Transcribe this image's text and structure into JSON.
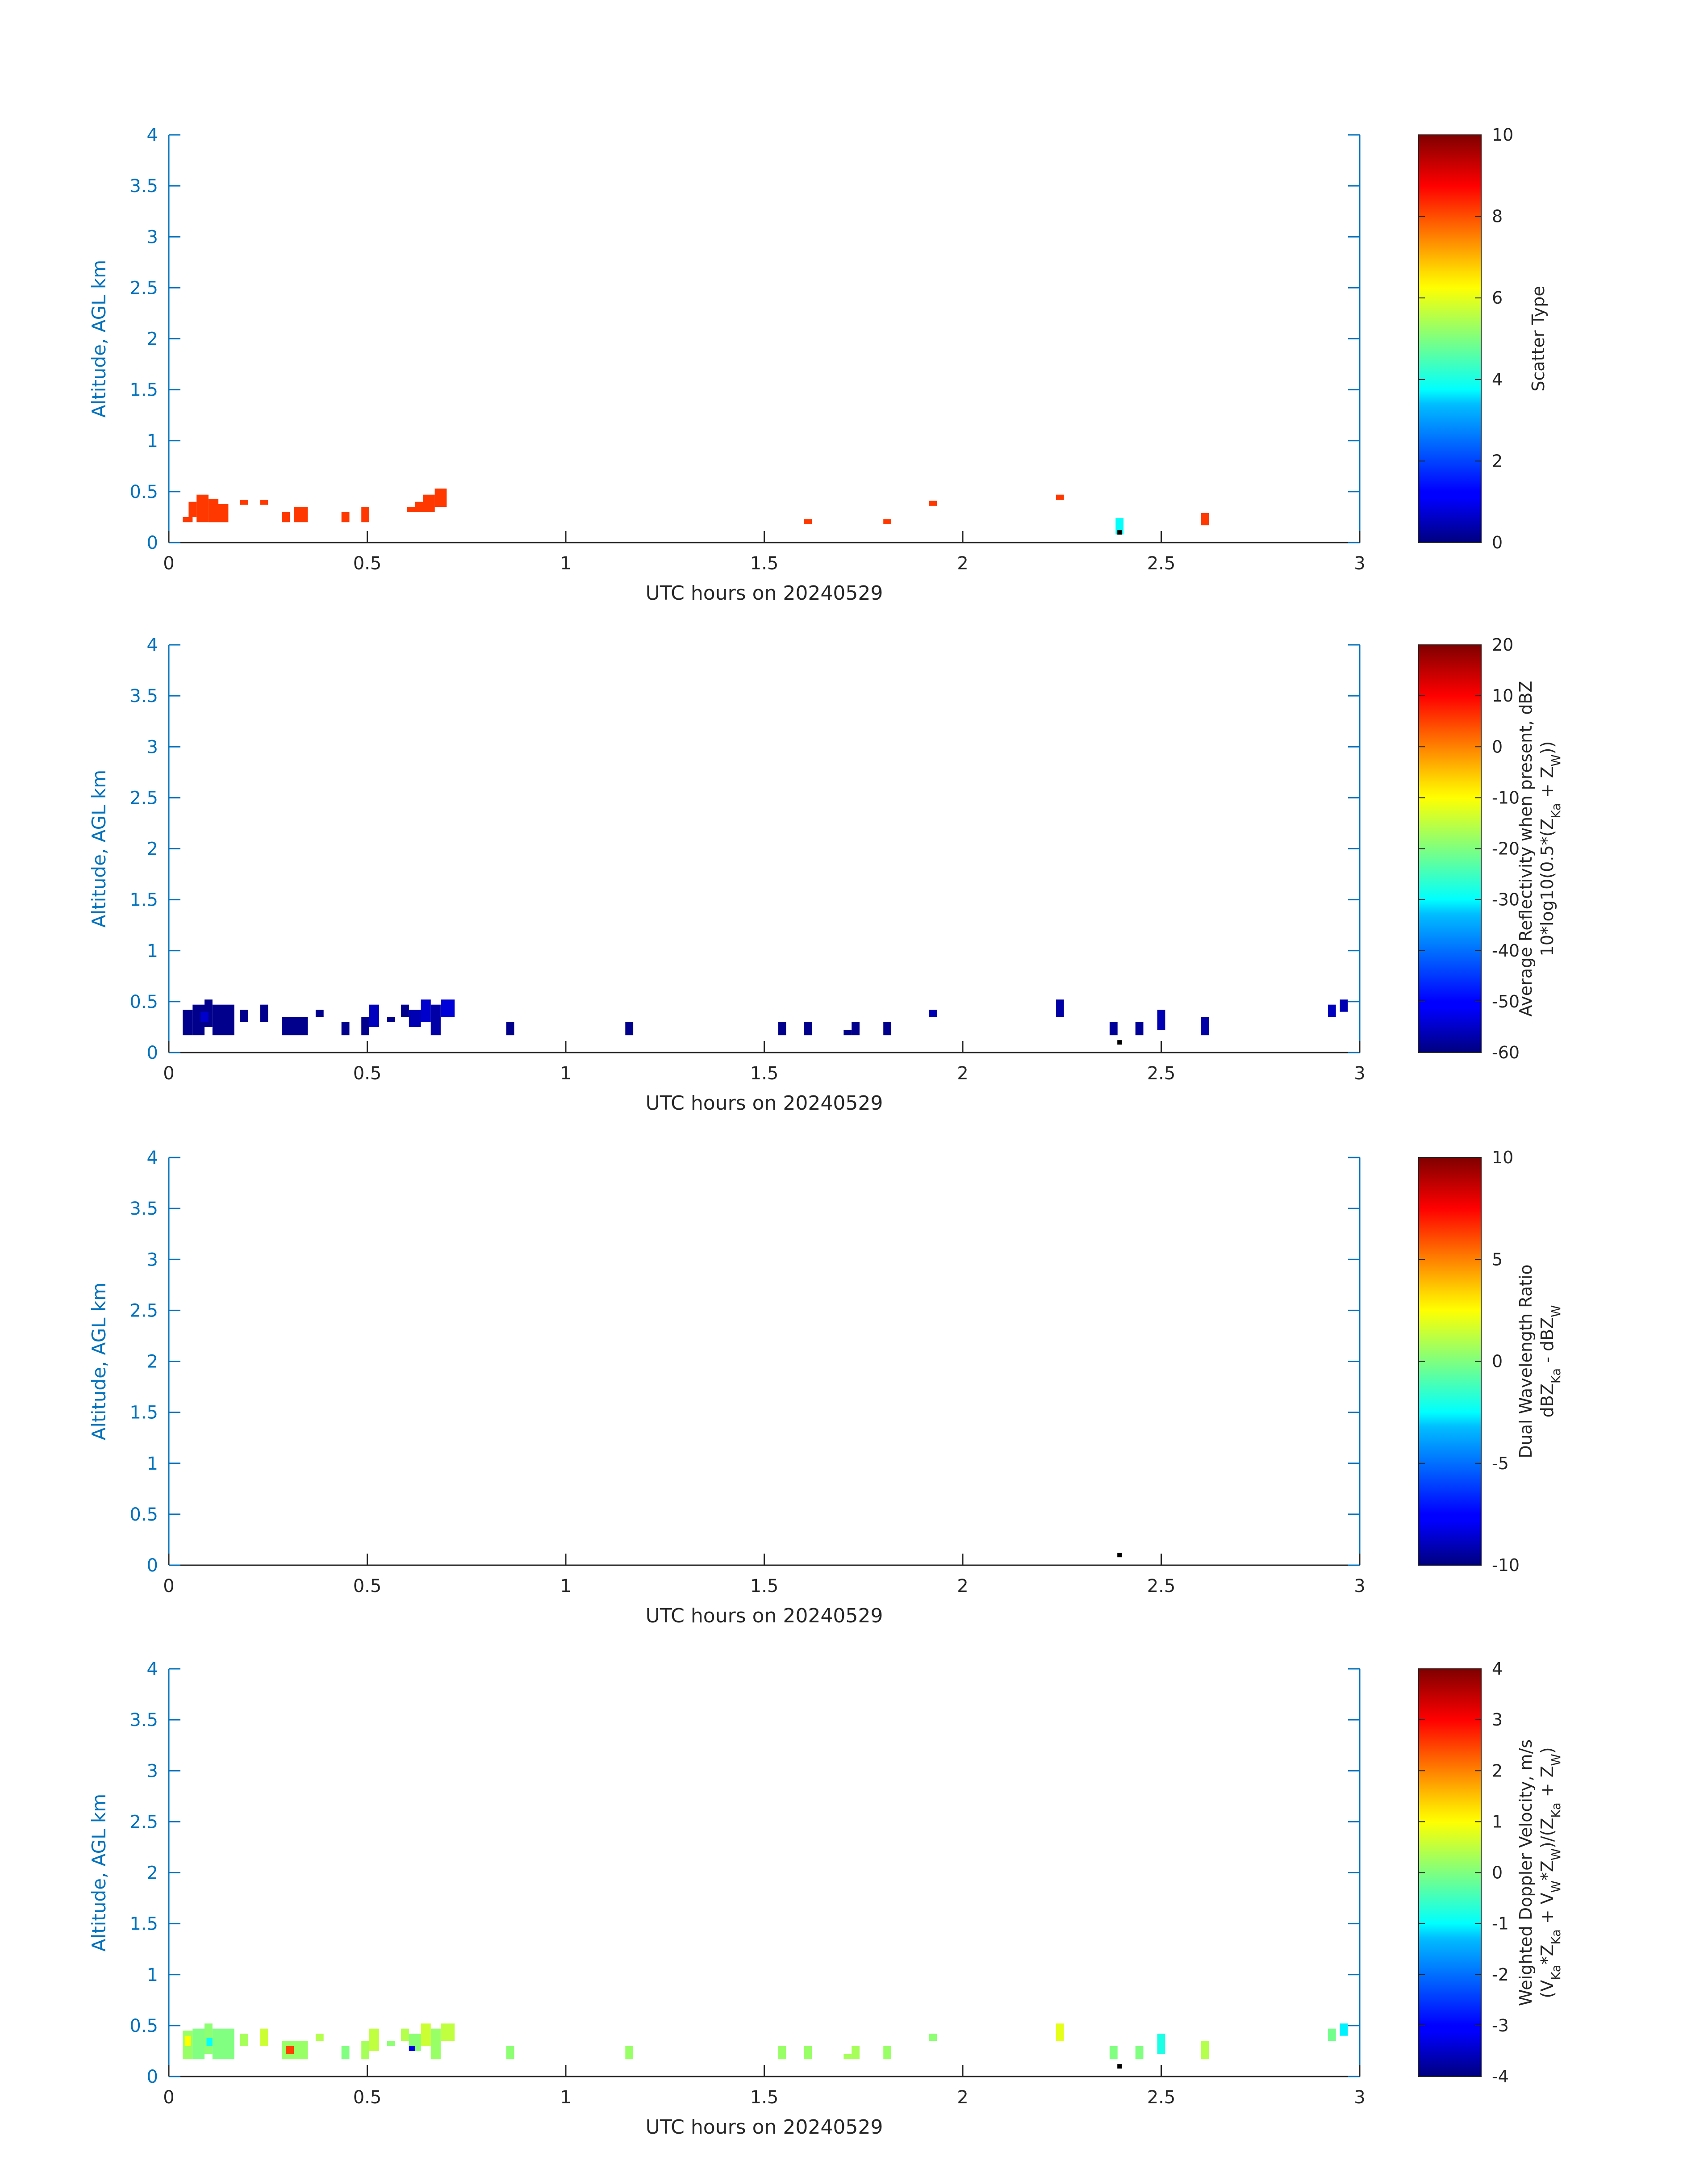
{
  "chart_data": [
    {
      "type": "heatmap",
      "xlabel": "UTC hours on 20240529",
      "ylabel": "Altitude, AGL km",
      "xlim": [
        0,
        3
      ],
      "ylim": [
        0,
        4
      ],
      "x_ticks": [
        "0",
        "0.5",
        "1",
        "1.5",
        "2",
        "2.5",
        "3"
      ],
      "y_ticks": [
        "0",
        "0.5",
        "1",
        "1.5",
        "2",
        "2.5",
        "3",
        "3.5",
        "4"
      ],
      "colorbar": {
        "label_lines": [
          "Scatter Type"
        ],
        "range": [
          0,
          10
        ],
        "ticks": [
          "0",
          "2",
          "4",
          "6",
          "8",
          "10"
        ],
        "colormap": "jet"
      },
      "cells": [
        {
          "x0": 0.035,
          "x1": 0.06,
          "y0": 0.2,
          "y1": 0.25,
          "v": 8.2
        },
        {
          "x0": 0.05,
          "x1": 0.07,
          "y0": 0.25,
          "y1": 0.4,
          "v": 8.2
        },
        {
          "x0": 0.07,
          "x1": 0.1,
          "y0": 0.2,
          "y1": 0.47,
          "v": 8.2
        },
        {
          "x0": 0.1,
          "x1": 0.15,
          "y0": 0.2,
          "y1": 0.38,
          "v": 8.2
        },
        {
          "x0": 0.1,
          "x1": 0.125,
          "y0": 0.38,
          "y1": 0.43,
          "v": 8.2
        },
        {
          "x0": 0.18,
          "x1": 0.2,
          "y0": 0.37,
          "y1": 0.42,
          "v": 8.2
        },
        {
          "x0": 0.23,
          "x1": 0.25,
          "y0": 0.37,
          "y1": 0.42,
          "v": 8.2
        },
        {
          "x0": 0.285,
          "x1": 0.305,
          "y0": 0.2,
          "y1": 0.3,
          "v": 8.2
        },
        {
          "x0": 0.315,
          "x1": 0.35,
          "y0": 0.2,
          "y1": 0.35,
          "v": 8.2
        },
        {
          "x0": 0.435,
          "x1": 0.455,
          "y0": 0.2,
          "y1": 0.3,
          "v": 8.2
        },
        {
          "x0": 0.485,
          "x1": 0.505,
          "y0": 0.2,
          "y1": 0.35,
          "v": 8.2
        },
        {
          "x0": 0.6,
          "x1": 0.62,
          "y0": 0.3,
          "y1": 0.35,
          "v": 8.2
        },
        {
          "x0": 0.62,
          "x1": 0.64,
          "y0": 0.3,
          "y1": 0.4,
          "v": 8.2
        },
        {
          "x0": 0.64,
          "x1": 0.67,
          "y0": 0.3,
          "y1": 0.47,
          "v": 8.2
        },
        {
          "x0": 0.67,
          "x1": 0.7,
          "y0": 0.35,
          "y1": 0.53,
          "v": 8.2
        },
        {
          "x0": 1.6,
          "x1": 1.62,
          "y0": 0.18,
          "y1": 0.23,
          "v": 8.2
        },
        {
          "x0": 1.8,
          "x1": 1.82,
          "y0": 0.18,
          "y1": 0.23,
          "v": 8.2
        },
        {
          "x0": 1.915,
          "x1": 1.935,
          "y0": 0.36,
          "y1": 0.41,
          "v": 8.2
        },
        {
          "x0": 2.235,
          "x1": 2.255,
          "y0": 0.42,
          "y1": 0.47,
          "v": 8.2
        },
        {
          "x0": 2.385,
          "x1": 2.405,
          "y0": 0.08,
          "y1": 0.24,
          "v": 3.8
        },
        {
          "x0": 2.6,
          "x1": 2.62,
          "y0": 0.17,
          "y1": 0.29,
          "v": 8.2
        }
      ],
      "dots": [
        {
          "x": 2.395,
          "y": 0.1
        }
      ]
    },
    {
      "type": "heatmap",
      "xlabel": "UTC hours on 20240529",
      "ylabel": "Altitude, AGL km",
      "xlim": [
        0,
        3
      ],
      "ylim": [
        0,
        4
      ],
      "x_ticks": [
        "0",
        "0.5",
        "1",
        "1.5",
        "2",
        "2.5",
        "3"
      ],
      "y_ticks": [
        "0",
        "0.5",
        "1",
        "1.5",
        "2",
        "2.5",
        "3",
        "3.5",
        "4"
      ],
      "colorbar": {
        "label_lines": [
          "Average Reflectivity when present, dBZ",
          "10*log10(0.5*(Z{Ka} + Z{W}))"
        ],
        "range": [
          -60,
          20
        ],
        "ticks": [
          "-60",
          "-50",
          "-40",
          "-30",
          "-20",
          "-10",
          "0",
          "10",
          "20"
        ],
        "colormap": "jet"
      },
      "cells": [
        {
          "x0": 0.035,
          "x1": 0.06,
          "y0": 0.17,
          "y1": 0.42,
          "v": -59
        },
        {
          "x0": 0.06,
          "x1": 0.09,
          "y0": 0.17,
          "y1": 0.47,
          "v": -59
        },
        {
          "x0": 0.09,
          "x1": 0.11,
          "y0": 0.25,
          "y1": 0.52,
          "v": -59
        },
        {
          "x0": 0.11,
          "x1": 0.165,
          "y0": 0.17,
          "y1": 0.47,
          "v": -59
        },
        {
          "x0": 0.08,
          "x1": 0.1,
          "y0": 0.3,
          "y1": 0.4,
          "v": -54
        },
        {
          "x0": 0.18,
          "x1": 0.2,
          "y0": 0.3,
          "y1": 0.42,
          "v": -59
        },
        {
          "x0": 0.23,
          "x1": 0.25,
          "y0": 0.3,
          "y1": 0.47,
          "v": -59
        },
        {
          "x0": 0.285,
          "x1": 0.35,
          "y0": 0.17,
          "y1": 0.35,
          "v": -59
        },
        {
          "x0": 0.37,
          "x1": 0.39,
          "y0": 0.35,
          "y1": 0.42,
          "v": -59
        },
        {
          "x0": 0.435,
          "x1": 0.455,
          "y0": 0.17,
          "y1": 0.3,
          "v": -59
        },
        {
          "x0": 0.485,
          "x1": 0.505,
          "y0": 0.17,
          "y1": 0.35,
          "v": -59
        },
        {
          "x0": 0.505,
          "x1": 0.53,
          "y0": 0.25,
          "y1": 0.47,
          "v": -55
        },
        {
          "x0": 0.55,
          "x1": 0.57,
          "y0": 0.3,
          "y1": 0.35,
          "v": -59
        },
        {
          "x0": 0.585,
          "x1": 0.605,
          "y0": 0.35,
          "y1": 0.47,
          "v": -59
        },
        {
          "x0": 0.605,
          "x1": 0.635,
          "y0": 0.25,
          "y1": 0.42,
          "v": -56
        },
        {
          "x0": 0.635,
          "x1": 0.66,
          "y0": 0.3,
          "y1": 0.52,
          "v": -54
        },
        {
          "x0": 0.66,
          "x1": 0.685,
          "y0": 0.17,
          "y1": 0.47,
          "v": -57
        },
        {
          "x0": 0.685,
          "x1": 0.72,
          "y0": 0.35,
          "y1": 0.52,
          "v": -53
        },
        {
          "x0": 0.85,
          "x1": 0.87,
          "y0": 0.17,
          "y1": 0.3,
          "v": -59
        },
        {
          "x0": 1.15,
          "x1": 1.17,
          "y0": 0.17,
          "y1": 0.3,
          "v": -59
        },
        {
          "x0": 1.535,
          "x1": 1.555,
          "y0": 0.17,
          "y1": 0.3,
          "v": -59
        },
        {
          "x0": 1.6,
          "x1": 1.62,
          "y0": 0.17,
          "y1": 0.3,
          "v": -59
        },
        {
          "x0": 1.7,
          "x1": 1.72,
          "y0": 0.17,
          "y1": 0.22,
          "v": -59
        },
        {
          "x0": 1.72,
          "x1": 1.74,
          "y0": 0.17,
          "y1": 0.3,
          "v": -59
        },
        {
          "x0": 1.8,
          "x1": 1.82,
          "y0": 0.17,
          "y1": 0.3,
          "v": -59
        },
        {
          "x0": 1.915,
          "x1": 1.935,
          "y0": 0.35,
          "y1": 0.42,
          "v": -56
        },
        {
          "x0": 2.235,
          "x1": 2.255,
          "y0": 0.35,
          "y1": 0.52,
          "v": -57
        },
        {
          "x0": 2.37,
          "x1": 2.39,
          "y0": 0.17,
          "y1": 0.3,
          "v": -58
        },
        {
          "x0": 2.435,
          "x1": 2.455,
          "y0": 0.17,
          "y1": 0.3,
          "v": -58
        },
        {
          "x0": 2.49,
          "x1": 2.51,
          "y0": 0.22,
          "y1": 0.42,
          "v": -56
        },
        {
          "x0": 2.6,
          "x1": 2.62,
          "y0": 0.17,
          "y1": 0.35,
          "v": -57
        },
        {
          "x0": 2.92,
          "x1": 2.94,
          "y0": 0.35,
          "y1": 0.47,
          "v": -55
        },
        {
          "x0": 2.95,
          "x1": 2.97,
          "y0": 0.4,
          "y1": 0.52,
          "v": -56
        }
      ],
      "dots": [
        {
          "x": 2.395,
          "y": 0.1
        }
      ]
    },
    {
      "type": "heatmap",
      "xlabel": "UTC hours on 20240529",
      "ylabel": "Altitude, AGL km",
      "xlim": [
        0,
        3
      ],
      "ylim": [
        0,
        4
      ],
      "x_ticks": [
        "0",
        "0.5",
        "1",
        "1.5",
        "2",
        "2.5",
        "3"
      ],
      "y_ticks": [
        "0",
        "0.5",
        "1",
        "1.5",
        "2",
        "2.5",
        "3",
        "3.5",
        "4"
      ],
      "colorbar": {
        "label_lines": [
          "Dual Wavelength Ratio",
          "dBZ{Ka} - dBZ{W}"
        ],
        "range": [
          -10,
          10
        ],
        "ticks": [
          "-10",
          "-5",
          "0",
          "5",
          "10"
        ],
        "colormap": "jet"
      },
      "cells": [],
      "dots": [
        {
          "x": 2.395,
          "y": 0.1
        }
      ]
    },
    {
      "type": "heatmap",
      "xlabel": "UTC hours on 20240529",
      "ylabel": "Altitude, AGL km",
      "xlim": [
        0,
        3
      ],
      "ylim": [
        0,
        4
      ],
      "x_ticks": [
        "0",
        "0.5",
        "1",
        "1.5",
        "2",
        "2.5",
        "3"
      ],
      "y_ticks": [
        "0",
        "0.5",
        "1",
        "1.5",
        "2",
        "2.5",
        "3",
        "3.5",
        "4"
      ],
      "colorbar": {
        "label_lines": [
          "Weighted Doppler Velocity, m/s",
          "(V{Ka}*Z{Ka} + V{W}*Z{W})/(Z{Ka} + Z{W})"
        ],
        "range": [
          -4,
          4
        ],
        "ticks": [
          "-4",
          "-3",
          "-2",
          "-1",
          "0",
          "1",
          "2",
          "3",
          "4"
        ],
        "colormap": "jet"
      },
      "cells": [
        {
          "x0": 0.035,
          "x1": 0.06,
          "y0": 0.17,
          "y1": 0.45,
          "v": 0.2
        },
        {
          "x0": 0.04,
          "x1": 0.055,
          "y0": 0.3,
          "y1": 0.4,
          "v": 1.0
        },
        {
          "x0": 0.06,
          "x1": 0.09,
          "y0": 0.17,
          "y1": 0.47,
          "v": 0.0
        },
        {
          "x0": 0.09,
          "x1": 0.11,
          "y0": 0.22,
          "y1": 0.52,
          "v": 0.1
        },
        {
          "x0": 0.095,
          "x1": 0.11,
          "y0": 0.3,
          "y1": 0.38,
          "v": -1.0
        },
        {
          "x0": 0.11,
          "x1": 0.165,
          "y0": 0.17,
          "y1": 0.47,
          "v": 0.0
        },
        {
          "x0": 0.18,
          "x1": 0.2,
          "y0": 0.3,
          "y1": 0.42,
          "v": 0.3
        },
        {
          "x0": 0.23,
          "x1": 0.25,
          "y0": 0.3,
          "y1": 0.47,
          "v": 0.6
        },
        {
          "x0": 0.285,
          "x1": 0.35,
          "y0": 0.17,
          "y1": 0.35,
          "v": 0.2
        },
        {
          "x0": 0.295,
          "x1": 0.315,
          "y0": 0.22,
          "y1": 0.3,
          "v": 2.5
        },
        {
          "x0": 0.37,
          "x1": 0.39,
          "y0": 0.35,
          "y1": 0.42,
          "v": 0.4
        },
        {
          "x0": 0.435,
          "x1": 0.455,
          "y0": 0.17,
          "y1": 0.3,
          "v": 0.0
        },
        {
          "x0": 0.485,
          "x1": 0.505,
          "y0": 0.17,
          "y1": 0.35,
          "v": 0.3
        },
        {
          "x0": 0.505,
          "x1": 0.53,
          "y0": 0.25,
          "y1": 0.47,
          "v": 0.5
        },
        {
          "x0": 0.55,
          "x1": 0.57,
          "y0": 0.3,
          "y1": 0.35,
          "v": 0.1
        },
        {
          "x0": 0.585,
          "x1": 0.605,
          "y0": 0.35,
          "y1": 0.47,
          "v": 0.4
        },
        {
          "x0": 0.605,
          "x1": 0.635,
          "y0": 0.25,
          "y1": 0.42,
          "v": 0.1
        },
        {
          "x0": 0.605,
          "x1": 0.62,
          "y0": 0.25,
          "y1": 0.3,
          "v": -3.2
        },
        {
          "x0": 0.635,
          "x1": 0.66,
          "y0": 0.3,
          "y1": 0.52,
          "v": 0.6
        },
        {
          "x0": 0.66,
          "x1": 0.685,
          "y0": 0.17,
          "y1": 0.47,
          "v": 0.2
        },
        {
          "x0": 0.685,
          "x1": 0.72,
          "y0": 0.35,
          "y1": 0.52,
          "v": 0.5
        },
        {
          "x0": 0.85,
          "x1": 0.87,
          "y0": 0.17,
          "y1": 0.3,
          "v": 0.1
        },
        {
          "x0": 1.15,
          "x1": 1.17,
          "y0": 0.17,
          "y1": 0.3,
          "v": 0.2
        },
        {
          "x0": 1.535,
          "x1": 1.555,
          "y0": 0.17,
          "y1": 0.3,
          "v": 0.2
        },
        {
          "x0": 1.6,
          "x1": 1.62,
          "y0": 0.17,
          "y1": 0.3,
          "v": 0.2
        },
        {
          "x0": 1.7,
          "x1": 1.72,
          "y0": 0.17,
          "y1": 0.22,
          "v": 0.3
        },
        {
          "x0": 1.72,
          "x1": 1.74,
          "y0": 0.17,
          "y1": 0.3,
          "v": 0.3
        },
        {
          "x0": 1.8,
          "x1": 1.82,
          "y0": 0.17,
          "y1": 0.3,
          "v": 0.2
        },
        {
          "x0": 1.915,
          "x1": 1.935,
          "y0": 0.35,
          "y1": 0.42,
          "v": 0.1
        },
        {
          "x0": 2.235,
          "x1": 2.255,
          "y0": 0.35,
          "y1": 0.52,
          "v": 0.8
        },
        {
          "x0": 2.37,
          "x1": 2.39,
          "y0": 0.17,
          "y1": 0.3,
          "v": 0.0
        },
        {
          "x0": 2.435,
          "x1": 2.455,
          "y0": 0.17,
          "y1": 0.3,
          "v": 0.0
        },
        {
          "x0": 2.49,
          "x1": 2.51,
          "y0": 0.22,
          "y1": 0.42,
          "v": -0.8
        },
        {
          "x0": 2.6,
          "x1": 2.62,
          "y0": 0.17,
          "y1": 0.35,
          "v": 0.4
        },
        {
          "x0": 2.92,
          "x1": 2.94,
          "y0": 0.35,
          "y1": 0.47,
          "v": -0.1
        },
        {
          "x0": 2.95,
          "x1": 2.97,
          "y0": 0.4,
          "y1": 0.52,
          "v": -1.1
        }
      ],
      "dots": [
        {
          "x": 2.395,
          "y": 0.1
        }
      ]
    }
  ]
}
